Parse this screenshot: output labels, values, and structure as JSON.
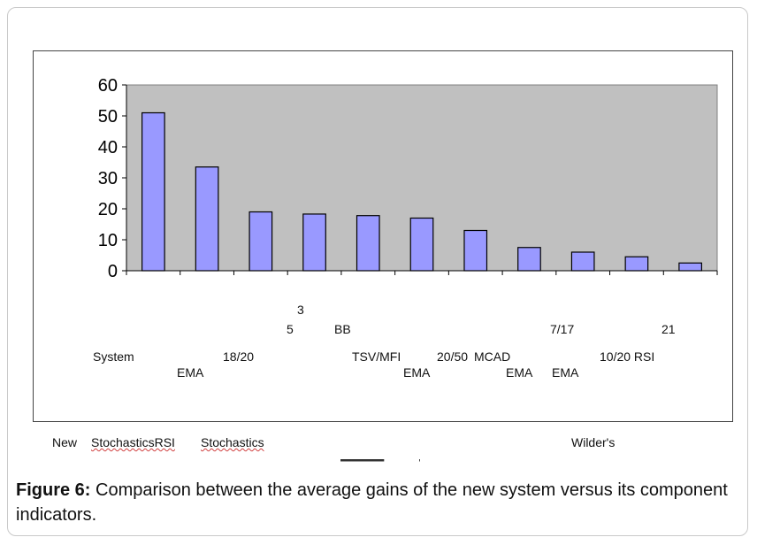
{
  "chart_data": {
    "type": "bar",
    "values": [
      51,
      33.5,
      19,
      18.3,
      17.8,
      17,
      13,
      7.5,
      6,
      4.5,
      2.5
    ],
    "ylim": [
      0,
      60
    ],
    "yticks": [
      "0",
      "10",
      "20",
      "30",
      "40",
      "50",
      "60"
    ],
    "grid": false,
    "legend": "none",
    "plot_background": "#c0c0c0",
    "bar_color": "#9999ff",
    "bar_edge_color": "#000000"
  },
  "category_labels": [
    {
      "id": "system",
      "text": "System"
    },
    {
      "id": "ema",
      "text": "EMA"
    },
    {
      "id": "18-20",
      "text": "18/20"
    },
    {
      "id": "three",
      "text": "3"
    },
    {
      "id": "five",
      "text": "5"
    },
    {
      "id": "bb",
      "text": "BB"
    },
    {
      "id": "tsv-mfi",
      "text": "TSV/MFI"
    },
    {
      "id": "ema-2",
      "text": "EMA"
    },
    {
      "id": "20-50",
      "text": "20/50"
    },
    {
      "id": "mcad",
      "text": "MCAD"
    },
    {
      "id": "ema-3",
      "text": "EMA"
    },
    {
      "id": "7-17",
      "text": "7/17"
    },
    {
      "id": "ema-4",
      "text": "EMA"
    },
    {
      "id": "10-20-rsi",
      "text": "10/20 RSI"
    },
    {
      "id": "twenty-one",
      "text": "21"
    }
  ],
  "overflow_labels": [
    {
      "id": "new",
      "text": "New"
    },
    {
      "id": "stochastics-rsi",
      "text": "StochasticsRSI"
    },
    {
      "id": "stochastics",
      "text": "Stochastics"
    },
    {
      "id": "wilders",
      "text": "Wilder's"
    }
  ],
  "caption": {
    "label": "Figure 6:",
    "text": " Comparison between the average gains of the new system versus its component indicators."
  }
}
